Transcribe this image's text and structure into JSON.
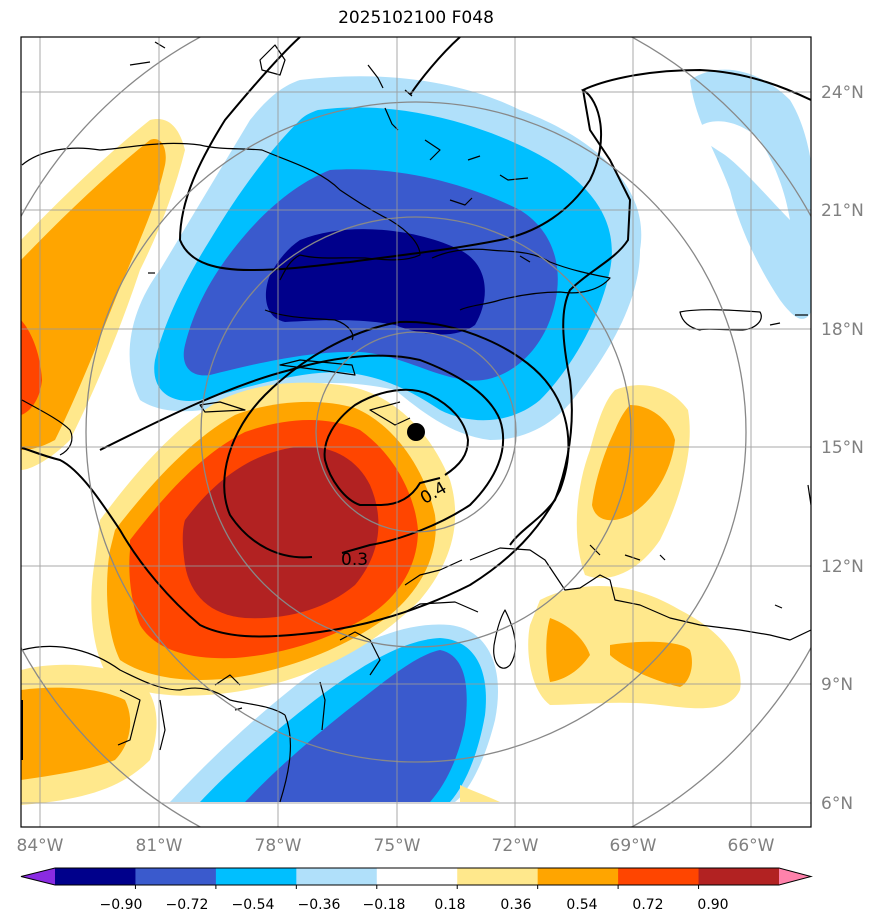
{
  "title": "2025102100 F048",
  "map": {
    "lon_labels": [
      "84°W",
      "81°W",
      "78°W",
      "75°W",
      "72°W",
      "69°W",
      "66°W"
    ],
    "lat_labels": [
      "24°N",
      "21°N",
      "18°N",
      "15°N",
      "12°N",
      "9°N",
      "6°N"
    ],
    "contour_labels": [
      "0.3",
      "0.4"
    ],
    "storm_center": "black dot"
  },
  "colorbar": {
    "tick_labels": [
      "−0.90",
      "−0.72",
      "−0.54",
      "−0.36",
      "−0.18",
      "0.18",
      "0.36",
      "0.54",
      "0.72",
      "0.90"
    ],
    "colors": [
      "#8a2be2",
      "#00008b",
      "#3a5acd",
      "#00bfff",
      "#b0e0fa",
      "#ffffff",
      "#ffe88c",
      "#ffa500",
      "#ff4500",
      "#b22222",
      "#ff82ab"
    ]
  },
  "palette": {
    "dark_blue": "#00008b",
    "blue": "#3a5acd",
    "cyan": "#00bfff",
    "light_blue": "#b0e0fa",
    "yellow": "#ffe88c",
    "orange": "#ffa500",
    "red_orange": "#ff4500",
    "dark_red": "#b22222"
  }
}
